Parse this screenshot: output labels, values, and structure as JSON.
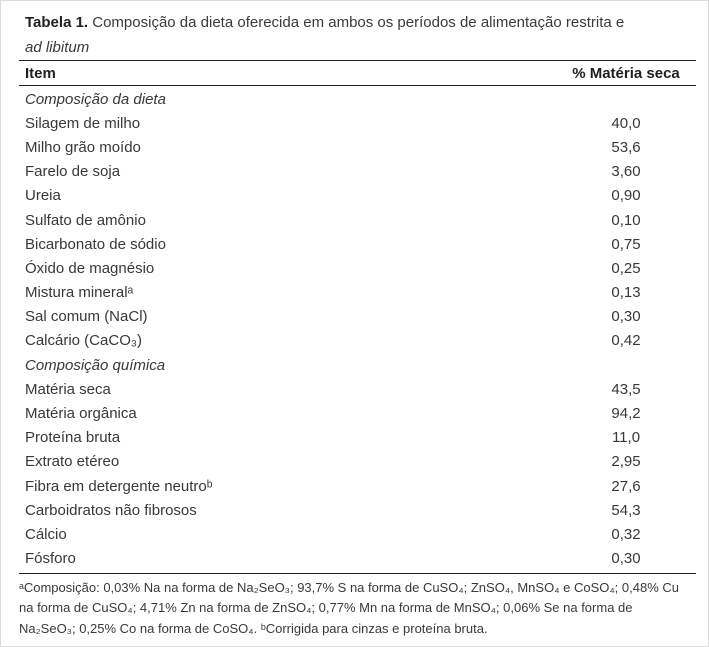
{
  "page": {
    "background": "#ffffff",
    "frame_border_color": "#dcdcdc",
    "text_color": "#383838",
    "rule_color": "#1f1f1f"
  },
  "caption": {
    "label": "Tabela 1.",
    "text": " Composição da dieta oferecida em ambos os períodos de alimentação restrita e",
    "italic_suffix": "ad libitum"
  },
  "table": {
    "columns": {
      "item": "Item",
      "value": "% Matéria seca"
    },
    "rows": [
      {
        "label": "Composição da dieta",
        "value": "",
        "type": "section"
      },
      {
        "label": "Silagem de milho",
        "value": "40,0",
        "type": "data"
      },
      {
        "label": "Milho grão moído",
        "value": "53,6",
        "type": "data"
      },
      {
        "label": "Farelo de soja",
        "value": "3,60",
        "type": "data"
      },
      {
        "label": "Ureia",
        "value": "0,90",
        "type": "data"
      },
      {
        "label": "Sulfato de amônio",
        "value": "0,10",
        "type": "data"
      },
      {
        "label": "Bicarbonato de sódio",
        "value": "0,75",
        "type": "data"
      },
      {
        "label": "Óxido de magnésio",
        "value": "0,25",
        "type": "data"
      },
      {
        "label": "Mistura mineralᵃ",
        "value": "0,13",
        "type": "data"
      },
      {
        "label": "Sal comum (NaCl)",
        "value": "0,30",
        "type": "data"
      },
      {
        "label": "Calcário (CaCO₃)",
        "value": "0,42",
        "type": "data"
      },
      {
        "label": "Composição química",
        "value": "",
        "type": "section"
      },
      {
        "label": "Matéria seca",
        "value": "43,5",
        "type": "data"
      },
      {
        "label": "Matéria orgânica",
        "value": "94,2",
        "type": "data"
      },
      {
        "label": "Proteína bruta",
        "value": "11,0",
        "type": "data"
      },
      {
        "label": "Extrato etéreo",
        "value": "2,95",
        "type": "data"
      },
      {
        "label": "Fibra em detergente neutroᵇ",
        "value": "27,6",
        "type": "data"
      },
      {
        "label": "Carboidratos não fibrosos",
        "value": "54,3",
        "type": "data"
      },
      {
        "label": "Cálcio",
        "value": "0,32",
        "type": "data"
      },
      {
        "label": "Fósforo",
        "value": "0,30",
        "type": "data"
      }
    ]
  },
  "footnote": {
    "text": "ᵃComposição: 0,03% Na na forma de Na₂SeO₃; 93,7% S na forma de CuSO₄; ZnSO₄, MnSO₄ e CoSO₄; 0,48% Cu na forma de CuSO₄; 4,71% Zn na forma de ZnSO₄; 0,77% Mn na forma de MnSO₄; 0,06% Se na forma de Na₂SeO₃; 0,25% Co na forma de CoSO₄. ᵇCorrigida para cinzas e proteína bruta."
  }
}
